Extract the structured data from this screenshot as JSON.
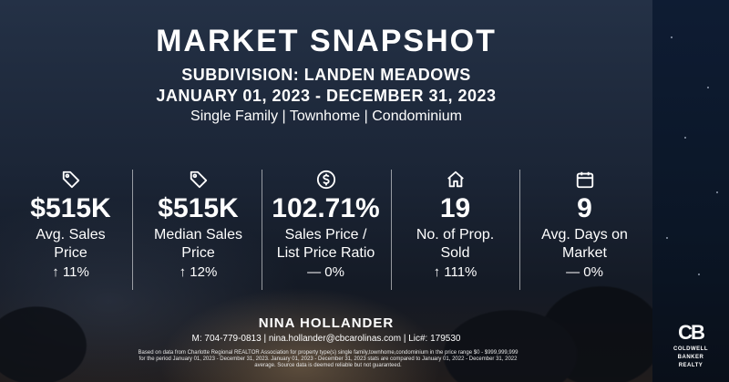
{
  "header": {
    "title": "MARKET SNAPSHOT",
    "subdivision": "SUBDIVISION: LANDEN MEADOWS",
    "date_range": "JANUARY 01, 2023 - DECEMBER 31, 2023",
    "property_types": "Single Family | Townhome | Condominium"
  },
  "stats": [
    {
      "icon": "price-tag-icon",
      "value": "$515K",
      "label_line1": "Avg. Sales",
      "label_line2": "Price",
      "change": "↑ 11%"
    },
    {
      "icon": "price-tag-icon",
      "value": "$515K",
      "label_line1": "Median Sales",
      "label_line2": "Price",
      "change": "↑ 12%"
    },
    {
      "icon": "dollar-circle-icon",
      "value": "102.71%",
      "label_line1": "Sales Price /",
      "label_line2": "List Price Ratio",
      "change": "— 0%"
    },
    {
      "icon": "house-icon",
      "value": "19",
      "label_line1": "No. of Prop.",
      "label_line2": "Sold",
      "change": "↑ 111%"
    },
    {
      "icon": "calendar-icon",
      "value": "9",
      "label_line1": "Avg. Days on",
      "label_line2": "Market",
      "change": "— 0%"
    }
  ],
  "agent": {
    "name": "NINA HOLLANDER",
    "contact": "M: 704-779-0813 | nina.hollander@cbcarolinas.com | Lic#: 179530"
  },
  "disclaimer": "Based on data from Charlotte Regional REALTOR Association for property type(s) single family,townhome,condominium in the price range $0 - $999,999,999 for the period January 01, 2023 - December 31, 2023. January 01, 2023 - December 31, 2023 stats are compared to January 01, 2022 - December 31, 2022 average. Source data is deemed reliable but not guaranteed.",
  "brand": {
    "logo_mark": "CB",
    "line1": "COLDWELL",
    "line2": "BANKER",
    "line3": "REALTY"
  }
}
